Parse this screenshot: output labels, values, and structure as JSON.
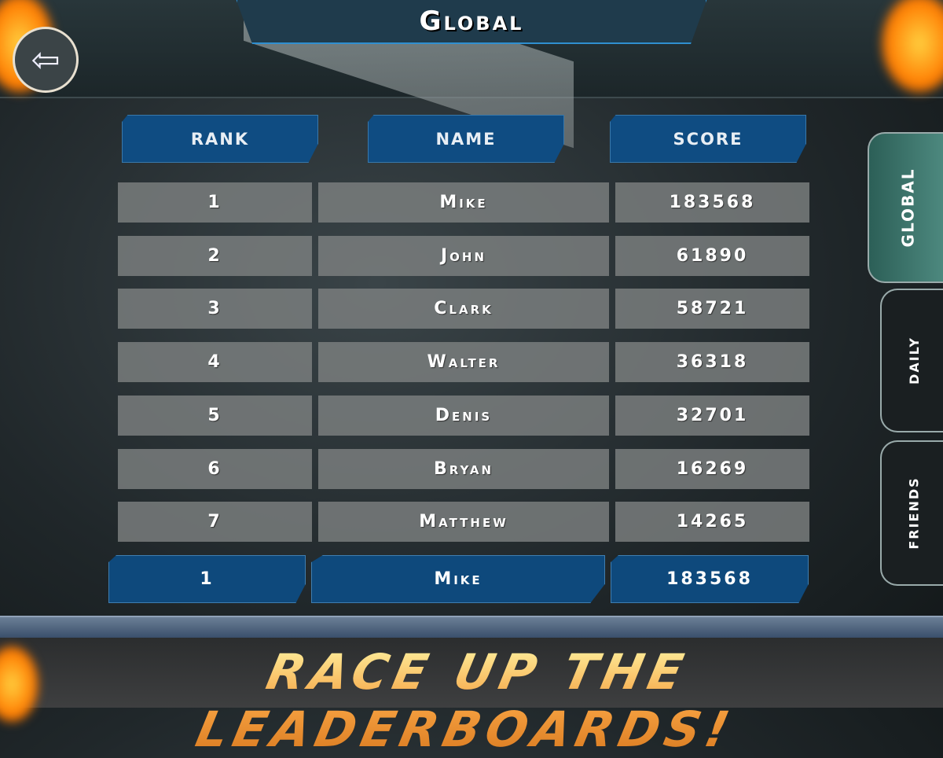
{
  "title": "Global",
  "back_icon": "left-arrow-icon",
  "headers": {
    "rank": "RANK",
    "name": "NAME",
    "score": "SCORE"
  },
  "rows": [
    {
      "rank": "1",
      "name": "Mike",
      "score": "183568"
    },
    {
      "rank": "2",
      "name": "John",
      "score": "61890"
    },
    {
      "rank": "3",
      "name": "Clark",
      "score": "58721"
    },
    {
      "rank": "4",
      "name": "Walter",
      "score": "36318"
    },
    {
      "rank": "5",
      "name": "Denis",
      "score": "32701"
    },
    {
      "rank": "6",
      "name": "Bryan",
      "score": "16269"
    },
    {
      "rank": "7",
      "name": "Matthew",
      "score": "14265"
    }
  ],
  "player": {
    "rank": "1",
    "name": "Mike",
    "score": "183568"
  },
  "tabs": [
    {
      "label": "GLOBAL",
      "active": true
    },
    {
      "label": "DAILY",
      "active": false
    },
    {
      "label": "FRIENDS",
      "active": false
    }
  ],
  "slogan": "RACE UP THE LEADERBOARDS!",
  "colors": {
    "accent_blue": "#0f4c82",
    "active_tab": "#3f7a70",
    "slogan": "#f3b34a"
  }
}
